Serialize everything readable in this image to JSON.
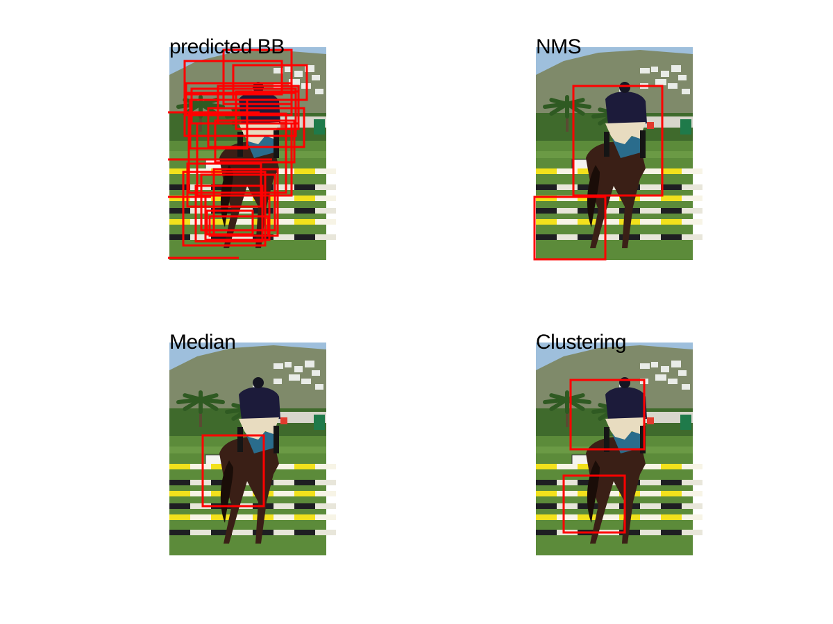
{
  "panels": [
    {
      "title": "predicted BB"
    },
    {
      "title": "NMS"
    },
    {
      "title": "Median"
    },
    {
      "title": "Clustering"
    }
  ],
  "colors": {
    "box": "#ff0000",
    "sky": "#9ebfdc",
    "hill": "#7f8a6a",
    "grass": "#5c8b3a",
    "rail_yellow": "#f2e11c",
    "rail_dark": "#1e1e22",
    "horse": "#3a1f16",
    "rider_jacket": "#1c1b3a",
    "rider_breeches": "#e8dcc0"
  },
  "image_content": [
    "horse",
    "rider",
    "show-jumping-rails",
    "palm-trees",
    "hillside-houses",
    "grass-field"
  ]
}
